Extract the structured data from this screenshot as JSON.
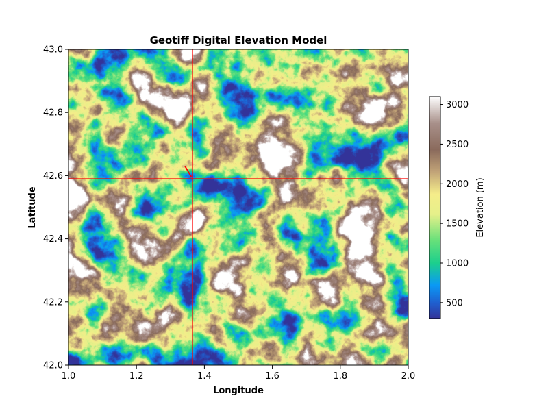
{
  "chart_data": {
    "type": "heatmap",
    "title": "Geotiff Digital Elevation Model",
    "xlabel": "Longitude",
    "ylabel": "Latitude",
    "xlim": [
      1.0,
      2.0
    ],
    "ylim": [
      42.0,
      43.0
    ],
    "x_ticks": [
      "1.0",
      "1.2",
      "1.4",
      "1.6",
      "1.8",
      "2.0"
    ],
    "x_tick_values": [
      1.0,
      1.2,
      1.4,
      1.6,
      1.8,
      2.0
    ],
    "y_ticks": [
      "42.0",
      "42.2",
      "42.4",
      "42.6",
      "42.8",
      "43.0"
    ],
    "y_tick_values": [
      42.0,
      42.2,
      42.4,
      42.6,
      42.8,
      43.0
    ],
    "colorbar": {
      "label": "Elevation (m)",
      "range": [
        300,
        3100
      ],
      "ticks": [
        "500",
        "1000",
        "1500",
        "2000",
        "2500",
        "3000"
      ],
      "tick_values": [
        500,
        1000,
        1500,
        2000,
        2500,
        3000
      ],
      "colormap": "terrain"
    },
    "crosshair": {
      "lon": 1.365,
      "lat": 42.59,
      "color": "#ff0000"
    },
    "pointer_segment": {
      "from": [
        1.343,
        42.63
      ],
      "to": [
        1.362,
        42.595
      ],
      "color": "#ff0000"
    },
    "grid": false
  }
}
